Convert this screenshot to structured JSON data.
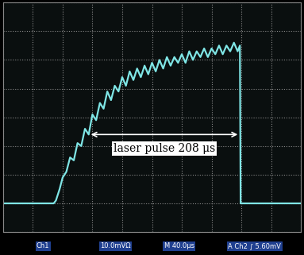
{
  "chart_data": {
    "type": "line",
    "series": [
      {
        "name": "Ch1",
        "color": "#7fe6e6",
        "x": [
          0,
          68,
          71,
          76,
          80,
          85,
          90,
          95,
          100,
          105,
          110,
          115,
          120,
          125,
          130,
          135,
          140,
          145,
          150,
          155,
          160,
          165,
          170,
          175,
          180,
          185,
          190,
          195,
          200,
          205,
          210,
          215,
          220,
          225,
          230,
          235,
          240,
          245,
          250,
          255,
          260,
          265,
          270,
          275,
          280,
          285,
          290,
          295,
          300,
          305,
          310,
          315,
          318,
          319,
          400
        ],
        "values": [
          -30,
          -30,
          -29,
          -25,
          -21,
          -19,
          -14,
          -15,
          -9,
          -10,
          -4,
          -6,
          1,
          -1,
          5,
          3,
          9,
          6,
          11,
          9,
          14,
          11,
          16,
          13,
          17,
          14,
          18,
          15,
          19,
          16,
          20,
          17,
          21,
          18,
          21,
          19,
          22,
          19,
          23,
          20,
          23,
          21,
          24,
          21,
          24,
          22,
          25,
          22,
          25,
          23,
          26,
          23,
          25,
          -30,
          -30
        ]
      }
    ],
    "xlim": [
      0,
      400
    ],
    "ylim": [
      -40,
      40
    ],
    "xticks": [
      0,
      40,
      80,
      120,
      160,
      200,
      240,
      280,
      320,
      360,
      400
    ],
    "yticks": [
      -40,
      -30,
      -20,
      -10,
      0,
      10,
      20,
      30,
      40
    ],
    "grid": true,
    "tick_labels": false,
    "annotations": [
      {
        "text": "laser pulse 208 μs",
        "x": [
          115,
          318
        ],
        "y": -6
      }
    ],
    "status": [
      "Ch1",
      "10.0mVΩ",
      "M 40.0μs",
      "A Ch2 ∫ 5.60mV"
    ]
  }
}
